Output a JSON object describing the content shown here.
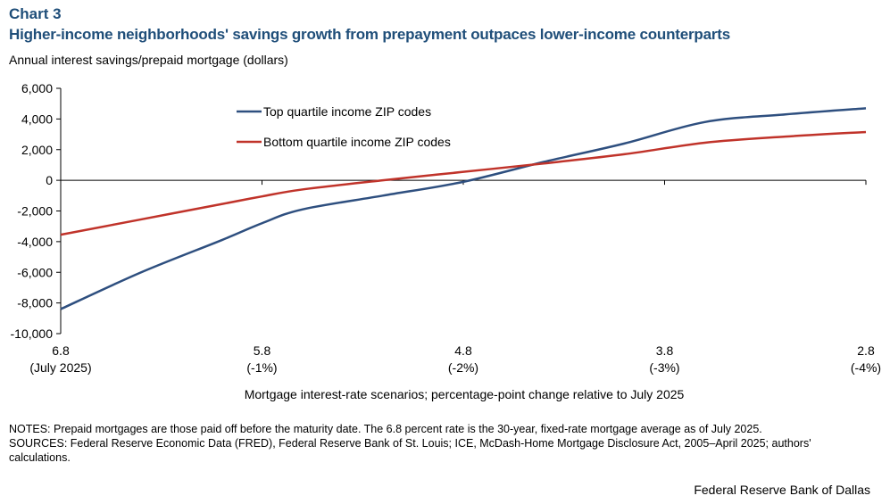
{
  "header": {
    "label": "Chart 3",
    "title": "Higher-income neighborhoods' savings growth from prepayment outpaces lower-income counterparts"
  },
  "chart_data": {
    "type": "line",
    "ylabel": "Annual interest savings/prepaid mortgage (dollars)",
    "xlabel": "Mortgage interest-rate scenarios; percentage-point change relative to July 2025",
    "ylim": [
      -10000,
      6000
    ],
    "yticks": [
      6000,
      4000,
      2000,
      0,
      -2000,
      -4000,
      -6000,
      -8000,
      -10000
    ],
    "ytick_labels": [
      "6,000",
      "4,000",
      "2,000",
      "0",
      "-2,000",
      "-4,000",
      "-6,000",
      "-8,000",
      "-10,000"
    ],
    "xlim": [
      6.8,
      2.8
    ],
    "xticks": [
      {
        "value": 6.8,
        "label": "6.8",
        "sublabel": "(July 2025)"
      },
      {
        "value": 5.8,
        "label": "5.8",
        "sublabel": "(-1%)"
      },
      {
        "value": 4.8,
        "label": "4.8",
        "sublabel": "(-2%)"
      },
      {
        "value": 3.8,
        "label": "3.8",
        "sublabel": "(-3%)"
      },
      {
        "value": 2.8,
        "label": "2.8",
        "sublabel": "(-4%)"
      }
    ],
    "x": [
      6.8,
      6.4,
      6.0,
      5.8,
      5.6,
      5.2,
      4.8,
      4.4,
      4.0,
      3.6,
      3.2,
      2.8
    ],
    "series": [
      {
        "name": "Top quartile income ZIP codes",
        "color": "#2e4f7f",
        "values": [
          -8400,
          -6000,
          -3900,
          -2800,
          -1900,
          -1000,
          -100,
          1200,
          2400,
          3800,
          4300,
          4700
        ]
      },
      {
        "name": "Bottom quartile income ZIP codes",
        "color": "#c0332a",
        "values": [
          -3550,
          -2550,
          -1550,
          -1050,
          -600,
          0,
          550,
          1100,
          1700,
          2450,
          2850,
          3150
        ]
      }
    ],
    "legend": "upper-center",
    "grid": false
  },
  "notes": {
    "notes": "NOTES: Prepaid mortgages are those paid off before the maturity date. The 6.8 percent rate is the 30-year, fixed-rate mortgage average as of July 2025.",
    "sources": "SOURCES: Federal Reserve Economic Data (FRED), Federal Reserve Bank of St. Louis; ICE, McDash-Home Mortgage Disclosure Act, 2005–April 2025; authors' calculations."
  },
  "footer": {
    "source_org": "Federal Reserve Bank of Dallas"
  }
}
